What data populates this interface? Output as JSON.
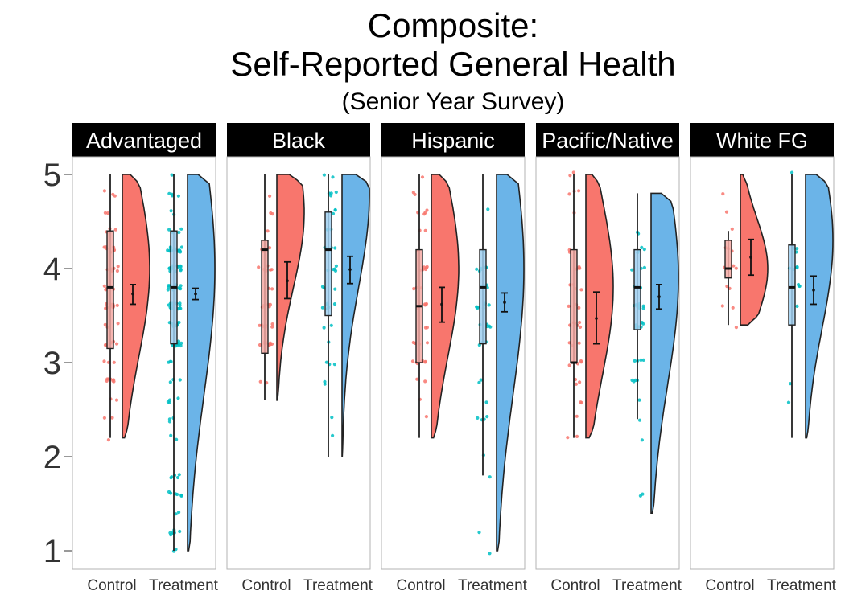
{
  "title": {
    "line1": "Composite:",
    "line2": "Self-Reported General Health",
    "line3": "(Senior Year Survey)"
  },
  "chart_data": {
    "type": "raincloud",
    "ylim": [
      1,
      5
    ],
    "y_ticks": [
      "1",
      "2",
      "3",
      "4",
      "5"
    ],
    "x_categories": [
      "Control",
      "Treatment"
    ],
    "grid": false,
    "colors": {
      "Control": "#F8766D",
      "Treatment": "#00BFC4",
      "TreatmentViolin": "#6BB4E8"
    },
    "panels": [
      {
        "name": "Advantaged",
        "groups": [
          {
            "group": "Control",
            "box": {
              "min": 2.2,
              "q1": 3.15,
              "median": 3.8,
              "q3": 4.4,
              "max": 5.0
            },
            "mean": 3.73,
            "ci": [
              3.62,
              3.83
            ],
            "violin_range": [
              2.2,
              5.0
            ],
            "violin_peak": 4.0
          },
          {
            "group": "Treatment",
            "box": {
              "min": 1.0,
              "q1": 3.2,
              "median": 3.8,
              "q3": 4.4,
              "max": 5.0
            },
            "mean": 3.73,
            "ci": [
              3.67,
              3.79
            ],
            "violin_range": [
              1.0,
              5.0
            ],
            "violin_peak": 4.0
          }
        ]
      },
      {
        "name": "Black",
        "groups": [
          {
            "group": "Control",
            "box": {
              "min": 2.6,
              "q1": 3.1,
              "median": 4.2,
              "q3": 4.3,
              "max": 5.0
            },
            "mean": 3.87,
            "ci": [
              3.68,
              4.07
            ],
            "violin_range": [
              2.6,
              5.0
            ],
            "violin_peak": 4.6
          },
          {
            "group": "Treatment",
            "box": {
              "min": 2.0,
              "q1": 3.5,
              "median": 4.2,
              "q3": 4.6,
              "max": 5.0
            },
            "mean": 3.99,
            "ci": [
              3.84,
              4.13
            ],
            "violin_range": [
              2.0,
              5.0
            ],
            "violin_peak": 4.8
          }
        ]
      },
      {
        "name": "Hispanic",
        "groups": [
          {
            "group": "Control",
            "box": {
              "min": 2.2,
              "q1": 3.0,
              "median": 3.6,
              "q3": 4.2,
              "max": 5.0
            },
            "mean": 3.62,
            "ci": [
              3.43,
              3.8
            ],
            "violin_range": [
              2.2,
              5.0
            ],
            "violin_peak": 4.0
          },
          {
            "group": "Treatment",
            "box": {
              "min": 1.8,
              "q1": 3.2,
              "median": 3.8,
              "q3": 4.2,
              "max": 5.0
            },
            "mean": 3.64,
            "ci": [
              3.54,
              3.74
            ],
            "violin_range": [
              1.0,
              5.0
            ],
            "violin_peak": 4.0
          }
        ]
      },
      {
        "name": "Pacific/Native",
        "groups": [
          {
            "group": "Control",
            "box": {
              "min": 2.2,
              "q1": 3.0,
              "median": 3.0,
              "q3": 4.2,
              "max": 5.0
            },
            "mean": 3.47,
            "ci": [
              3.2,
              3.75
            ],
            "violin_range": [
              2.2,
              5.0
            ],
            "violin_peak": 3.8
          },
          {
            "group": "Treatment",
            "box": {
              "min": 2.4,
              "q1": 3.35,
              "median": 3.8,
              "q3": 4.2,
              "max": 4.8
            },
            "mean": 3.7,
            "ci": [
              3.57,
              3.83
            ],
            "violin_range": [
              1.4,
              4.8
            ],
            "violin_peak": 3.9
          }
        ]
      },
      {
        "name": "White FG",
        "groups": [
          {
            "group": "Control",
            "box": {
              "min": 3.4,
              "q1": 3.9,
              "median": 4.0,
              "q3": 4.3,
              "max": 4.4
            },
            "mean": 4.12,
            "ci": [
              3.93,
              4.31
            ],
            "violin_range": [
              3.4,
              5.0
            ],
            "violin_peak": 4.0
          },
          {
            "group": "Treatment",
            "box": {
              "min": 2.2,
              "q1": 3.4,
              "median": 3.8,
              "q3": 4.25,
              "max": 5.0
            },
            "mean": 3.77,
            "ci": [
              3.62,
              3.92
            ],
            "violin_range": [
              2.2,
              5.0
            ],
            "violin_peak": 4.3
          }
        ]
      }
    ]
  }
}
